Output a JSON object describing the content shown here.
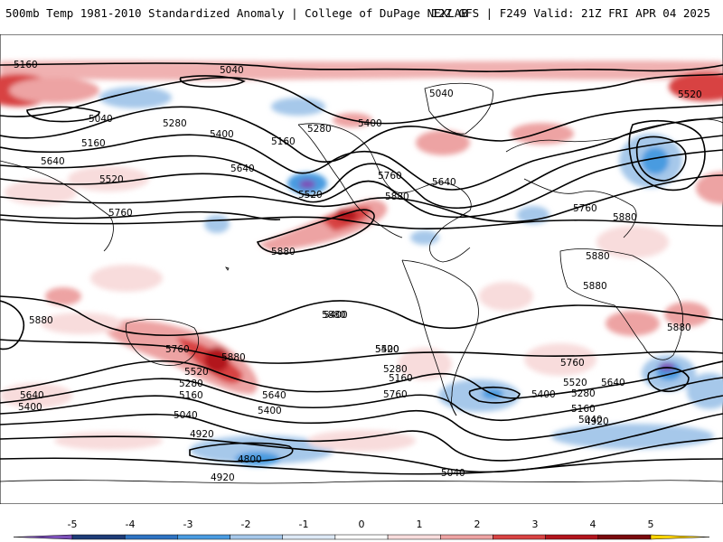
{
  "header": {
    "title_left": "500mb Temp 1981-2010 Standardized Anomaly | College of DuPage NEXLAB",
    "title_right": "12Z GFS | F249 Valid: 21Z FRI APR 04 2025"
  },
  "colorbar": {
    "ticks": [
      "-5",
      "-4",
      "-3",
      "-2",
      "-1",
      "0",
      "1",
      "2",
      "3",
      "4",
      "5"
    ],
    "colors": [
      "#7b4fb8",
      "#1e3c78",
      "#2e73c2",
      "#4a9be0",
      "#a6c8ea",
      "#dde9f6",
      "#ffffff",
      "#f8dcdc",
      "#eda3a3",
      "#d84343",
      "#b2151d",
      "#7a0a0e",
      "#ffd400"
    ]
  },
  "map": {
    "contour_labels": [
      "5160",
      "5040",
      "5040",
      "5280",
      "5400",
      "5160",
      "5280",
      "5040",
      "5160",
      "5400",
      "5520",
      "5640",
      "5520",
      "5520",
      "5640",
      "5760",
      "5640",
      "5760",
      "5880",
      "5880",
      "5880",
      "5760",
      "5880",
      "5880",
      "5880",
      "5880",
      "5760",
      "5520",
      "5280",
      "5160",
      "5640",
      "5400",
      "5880",
      "5640",
      "5400",
      "5040",
      "4920",
      "4800",
      "4920",
      "5400",
      "5520",
      "5280",
      "5160",
      "5760",
      "5400",
      "5760",
      "5520",
      "5280",
      "5640",
      "5400",
      "5040",
      "5160",
      "5040",
      "4920",
      "5880"
    ]
  }
}
